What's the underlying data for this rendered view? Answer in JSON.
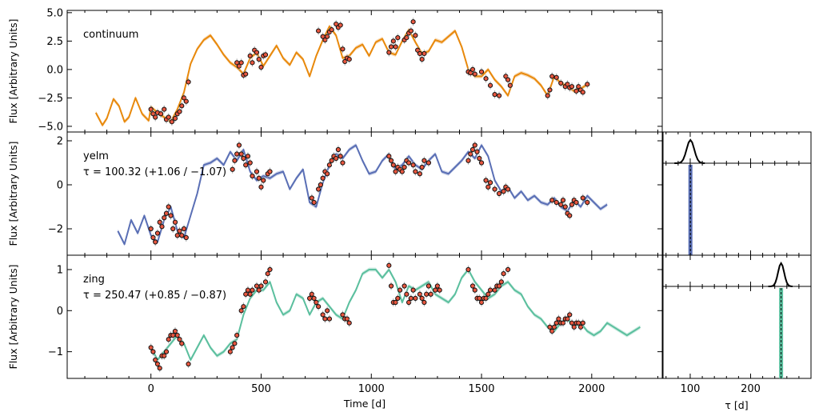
{
  "chart_data": {
    "type": "line",
    "xlabel": "Time [d]",
    "xlim": [
      -380,
      2320
    ],
    "xticks": [
      0,
      500,
      1000,
      1500,
      2000
    ],
    "tau_xlabel": "τ [d]",
    "tau_xlim": [
      55,
      300
    ],
    "tau_xticks": [
      100,
      200
    ],
    "panels": [
      {
        "name": "continuum",
        "lag_label": "",
        "color": "#e8890c",
        "ylabel": "Flux [Arbitrary Units]",
        "ylim": [
          -5.5,
          5.2
        ],
        "yticks": [
          -5.0,
          -2.5,
          0.0,
          2.5,
          5.0
        ],
        "ytick_labels": [
          "−5.0",
          "−2.5",
          "0.0",
          "2.5",
          "5.0"
        ],
        "model_x": [
          -250,
          -220,
          -200,
          -170,
          -145,
          -120,
          -100,
          -70,
          -40,
          -10,
          0,
          30,
          60,
          90,
          120,
          150,
          180,
          210,
          240,
          270,
          300,
          330,
          360,
          390,
          420,
          450,
          480,
          510,
          540,
          570,
          600,
          630,
          660,
          690,
          720,
          750,
          780,
          810,
          840,
          870,
          900,
          930,
          960,
          990,
          1020,
          1050,
          1080,
          1110,
          1140,
          1170,
          1200,
          1230,
          1260,
          1290,
          1320,
          1350,
          1380,
          1410,
          1440,
          1470,
          1500,
          1530,
          1560,
          1590,
          1620,
          1650,
          1680,
          1710,
          1740,
          1770,
          1800,
          1830,
          1860,
          1890,
          1920,
          1950,
          1980
        ],
        "model_y": [
          -3.8,
          -4.9,
          -4.3,
          -2.6,
          -3.2,
          -4.6,
          -4.2,
          -2.5,
          -3.9,
          -4.5,
          -3.3,
          -3.8,
          -4.2,
          -4.6,
          -3.5,
          -2.0,
          0.5,
          1.8,
          2.6,
          3.0,
          2.2,
          1.3,
          0.6,
          0.2,
          -0.4,
          1.0,
          1.5,
          0.3,
          1.2,
          2.1,
          1.0,
          0.4,
          1.5,
          0.9,
          -0.6,
          1.2,
          2.6,
          3.8,
          3.0,
          1.0,
          1.2,
          1.9,
          2.2,
          1.2,
          2.4,
          2.7,
          1.5,
          1.3,
          2.5,
          3.5,
          2.4,
          1.4,
          1.6,
          2.6,
          2.4,
          2.9,
          3.4,
          2.0,
          0.0,
          -0.6,
          -0.6,
          0.0,
          -0.9,
          -1.5,
          -2.3,
          -0.6,
          -0.3,
          -0.5,
          -0.8,
          -1.4,
          -2.3,
          -0.6,
          -1.2,
          -1.5,
          -1.9,
          -1.7,
          -1.3
        ],
        "obs_x": [
          0,
          10,
          20,
          30,
          45,
          60,
          70,
          80,
          95,
          110,
          120,
          130,
          140,
          150,
          160,
          170,
          390,
          400,
          410,
          420,
          430,
          450,
          460,
          470,
          480,
          490,
          500,
          510,
          520,
          760,
          780,
          790,
          800,
          810,
          820,
          840,
          850,
          860,
          870,
          880,
          890,
          900,
          1080,
          1090,
          1100,
          1110,
          1120,
          1150,
          1160,
          1170,
          1180,
          1190,
          1200,
          1210,
          1220,
          1230,
          1240,
          1440,
          1450,
          1460,
          1470,
          1500,
          1520,
          1540,
          1560,
          1580,
          1610,
          1620,
          1630,
          1800,
          1810,
          1820,
          1840,
          1860,
          1880,
          1890,
          1900,
          1910,
          1930,
          1940,
          1950,
          1960,
          1980
        ],
        "obs_y": [
          -3.5,
          -3.9,
          -4.2,
          -3.8,
          -3.9,
          -3.5,
          -4.4,
          -4.2,
          -4.6,
          -4.3,
          -3.9,
          -3.7,
          -3.2,
          -2.5,
          -2.8,
          -1.1,
          0.6,
          0.3,
          0.6,
          -0.5,
          -0.4,
          1.2,
          0.6,
          1.7,
          1.5,
          0.9,
          0.2,
          1.2,
          1.3,
          3.4,
          2.9,
          2.6,
          2.9,
          3.3,
          3.5,
          4.0,
          3.7,
          3.9,
          1.8,
          0.7,
          1.0,
          0.9,
          1.5,
          2.0,
          2.5,
          2.0,
          2.8,
          2.6,
          2.8,
          3.2,
          3.4,
          4.2,
          3.0,
          1.7,
          1.4,
          0.9,
          1.4,
          -0.2,
          -0.3,
          0.0,
          -0.4,
          -0.2,
          -0.8,
          -1.4,
          -2.2,
          -2.3,
          -0.6,
          -0.9,
          -1.4,
          -2.3,
          -1.8,
          -0.6,
          -0.7,
          -1.2,
          -1.5,
          -1.3,
          -1.6,
          -1.5,
          -1.9,
          -1.5,
          -1.8,
          -2.0,
          -1.3
        ]
      },
      {
        "name": "yelm",
        "lag_label": "τ = 100.32 (+1.06 / −1.07)",
        "color": "#5a6fb5",
        "ylabel": "Flux [Arbitrary Units]",
        "ylim": [
          -3.2,
          2.4
        ],
        "yticks": [
          -2,
          0,
          2
        ],
        "ytick_labels": [
          "−2",
          "0",
          "2"
        ],
        "model_x": [
          -150,
          -120,
          -90,
          -60,
          -30,
          0,
          30,
          60,
          90,
          120,
          150,
          180,
          210,
          240,
          270,
          300,
          330,
          360,
          390,
          420,
          450,
          480,
          510,
          540,
          570,
          600,
          630,
          660,
          690,
          720,
          750,
          780,
          810,
          840,
          870,
          900,
          930,
          960,
          990,
          1020,
          1050,
          1080,
          1110,
          1140,
          1170,
          1200,
          1230,
          1260,
          1290,
          1320,
          1350,
          1380,
          1410,
          1440,
          1470,
          1500,
          1530,
          1560,
          1590,
          1620,
          1650,
          1680,
          1710,
          1740,
          1770,
          1800,
          1830,
          1860,
          1890,
          1920,
          1950,
          1980,
          2010,
          2040,
          2070
        ],
        "model_y": [
          -2.1,
          -2.7,
          -1.6,
          -2.2,
          -1.4,
          -2.3,
          -2.6,
          -1.6,
          -1.0,
          -2.1,
          -2.4,
          -1.4,
          -0.4,
          0.9,
          1.0,
          1.2,
          0.9,
          1.5,
          1.1,
          1.6,
          0.6,
          0.2,
          0.4,
          0.3,
          0.5,
          0.6,
          -0.2,
          0.3,
          0.7,
          -0.8,
          -1.0,
          0.1,
          0.9,
          1.4,
          1.2,
          1.6,
          1.8,
          1.1,
          0.5,
          0.6,
          1.1,
          1.4,
          0.7,
          0.9,
          1.3,
          0.9,
          0.7,
          1.1,
          1.4,
          0.6,
          0.5,
          0.8,
          1.1,
          1.5,
          1.2,
          1.8,
          1.3,
          0.2,
          -0.3,
          -0.1,
          -0.6,
          -0.3,
          -0.7,
          -0.5,
          -0.8,
          -0.9,
          -0.6,
          -1.0,
          -1.2,
          -0.7,
          -1.0,
          -0.5,
          -0.8,
          -1.1,
          -0.9
        ],
        "obs_x": [
          0,
          10,
          20,
          30,
          40,
          50,
          60,
          70,
          80,
          90,
          100,
          110,
          120,
          130,
          140,
          150,
          160,
          370,
          380,
          390,
          400,
          410,
          420,
          430,
          440,
          450,
          460,
          480,
          490,
          500,
          510,
          530,
          540,
          730,
          740,
          760,
          770,
          780,
          790,
          800,
          810,
          820,
          830,
          840,
          850,
          860,
          870,
          1080,
          1090,
          1100,
          1110,
          1120,
          1130,
          1140,
          1150,
          1160,
          1170,
          1190,
          1200,
          1220,
          1230,
          1240,
          1260,
          1440,
          1450,
          1460,
          1470,
          1480,
          1490,
          1500,
          1520,
          1530,
          1540,
          1560,
          1580,
          1600,
          1610,
          1620,
          1820,
          1840,
          1860,
          1870,
          1880,
          1890,
          1900,
          1910,
          1920,
          1930,
          1960,
          1980
        ],
        "obs_y": [
          -2.0,
          -2.4,
          -2.6,
          -2.2,
          -1.7,
          -1.9,
          -1.5,
          -1.3,
          -1.0,
          -1.4,
          -2.0,
          -1.7,
          -2.3,
          -2.1,
          -2.3,
          -2.0,
          -2.4,
          0.7,
          1.1,
          1.4,
          1.8,
          1.4,
          1.2,
          0.9,
          1.3,
          1.0,
          0.4,
          0.6,
          0.3,
          -0.1,
          0.2,
          0.5,
          0.6,
          -0.6,
          -0.8,
          -0.2,
          0.0,
          0.3,
          0.6,
          0.5,
          0.9,
          1.1,
          1.3,
          1.2,
          1.6,
          1.3,
          1.0,
          1.3,
          1.1,
          0.9,
          0.6,
          0.8,
          0.7,
          0.6,
          0.8,
          1.1,
          1.0,
          0.9,
          0.6,
          0.5,
          0.8,
          1.1,
          1.0,
          1.1,
          1.4,
          1.6,
          1.8,
          1.5,
          1.2,
          1.0,
          0.2,
          -0.1,
          0.1,
          -0.2,
          -0.4,
          -0.3,
          -0.1,
          -0.2,
          -0.7,
          -0.8,
          -0.9,
          -0.7,
          -1.0,
          -1.3,
          -1.4,
          -0.9,
          -0.7,
          -0.8,
          -0.6,
          -0.8
        ]
      },
      {
        "name": "zing",
        "lag_label": "τ = 250.47 (+0.85 / −0.87)",
        "color": "#5bbf9e",
        "ylabel": "Flux [Arbitrary Units]",
        "ylim": [
          -1.65,
          1.35
        ],
        "yticks": [
          -1,
          0,
          1
        ],
        "ytick_labels": [
          "−1",
          "0",
          "1"
        ],
        "model_x": [
          0,
          30,
          60,
          90,
          120,
          150,
          180,
          210,
          240,
          270,
          300,
          330,
          360,
          390,
          420,
          450,
          480,
          510,
          540,
          570,
          600,
          630,
          660,
          690,
          720,
          750,
          780,
          810,
          840,
          870,
          900,
          930,
          960,
          990,
          1020,
          1050,
          1080,
          1110,
          1140,
          1170,
          1200,
          1230,
          1260,
          1290,
          1320,
          1350,
          1380,
          1410,
          1440,
          1470,
          1500,
          1530,
          1560,
          1590,
          1620,
          1650,
          1680,
          1710,
          1740,
          1770,
          1800,
          1830,
          1860,
          1890,
          1920,
          1950,
          1980,
          2010,
          2040,
          2070,
          2100,
          2130,
          2160,
          2190,
          2220
        ],
        "model_y": [
          -0.9,
          -1.2,
          -1.0,
          -0.8,
          -0.6,
          -0.8,
          -1.2,
          -0.9,
          -0.6,
          -0.9,
          -1.1,
          -1.0,
          -0.8,
          -0.7,
          -0.1,
          0.3,
          0.5,
          0.5,
          0.7,
          0.2,
          -0.1,
          0.0,
          0.4,
          0.3,
          -0.1,
          0.2,
          0.3,
          0.1,
          -0.1,
          -0.2,
          0.2,
          0.5,
          0.9,
          1.0,
          1.0,
          0.8,
          1.0,
          0.7,
          0.2,
          0.6,
          0.5,
          0.6,
          0.7,
          0.4,
          0.3,
          0.2,
          0.4,
          0.8,
          1.0,
          0.7,
          0.5,
          0.3,
          0.4,
          0.6,
          0.7,
          0.5,
          0.4,
          0.1,
          -0.1,
          -0.2,
          -0.4,
          -0.5,
          -0.3,
          -0.2,
          -0.4,
          -0.3,
          -0.5,
          -0.6,
          -0.5,
          -0.3,
          -0.4,
          -0.5,
          -0.6,
          -0.5,
          -0.4
        ],
        "obs_x": [
          0,
          10,
          20,
          30,
          40,
          50,
          60,
          70,
          80,
          90,
          100,
          110,
          120,
          130,
          140,
          170,
          360,
          370,
          380,
          390,
          410,
          420,
          430,
          440,
          450,
          460,
          480,
          490,
          500,
          520,
          530,
          540,
          720,
          730,
          740,
          750,
          760,
          780,
          790,
          800,
          810,
          870,
          880,
          890,
          900,
          1080,
          1090,
          1100,
          1110,
          1120,
          1130,
          1150,
          1160,
          1170,
          1180,
          1190,
          1200,
          1220,
          1230,
          1240,
          1250,
          1260,
          1270,
          1290,
          1300,
          1310,
          1440,
          1460,
          1470,
          1480,
          1490,
          1500,
          1510,
          1520,
          1530,
          1540,
          1560,
          1570,
          1580,
          1590,
          1600,
          1620,
          1810,
          1820,
          1830,
          1840,
          1850,
          1860,
          1870,
          1880,
          1890,
          1900,
          1910,
          1920,
          1930,
          1940,
          1950,
          1960
        ],
        "obs_y": [
          -0.9,
          -1.0,
          -1.2,
          -1.3,
          -1.4,
          -1.1,
          -1.1,
          -1.0,
          -0.7,
          -0.6,
          -0.6,
          -0.5,
          -0.6,
          -0.7,
          -0.8,
          -1.3,
          -1.0,
          -0.9,
          -0.8,
          -0.6,
          0.0,
          0.1,
          0.4,
          0.5,
          0.4,
          0.5,
          0.6,
          0.5,
          0.6,
          0.7,
          0.9,
          1.0,
          0.3,
          0.4,
          0.3,
          0.2,
          0.1,
          -0.1,
          -0.2,
          0.0,
          -0.2,
          -0.1,
          -0.2,
          -0.2,
          -0.3,
          1.1,
          0.6,
          0.2,
          0.2,
          0.3,
          0.5,
          0.6,
          0.4,
          0.2,
          0.3,
          0.5,
          0.3,
          0.4,
          0.3,
          0.2,
          0.4,
          0.6,
          0.4,
          0.5,
          0.6,
          0.5,
          1.0,
          0.6,
          0.5,
          0.3,
          0.3,
          0.2,
          0.3,
          0.3,
          0.4,
          0.5,
          0.5,
          0.6,
          0.6,
          0.7,
          0.9,
          1.0,
          -0.4,
          -0.5,
          -0.4,
          -0.3,
          -0.2,
          -0.3,
          -0.3,
          -0.2,
          -0.2,
          -0.1,
          -0.3,
          -0.4,
          -0.3,
          -0.3,
          -0.4,
          -0.3
        ],
        "tau_posterior_peak": 250.47
      }
    ],
    "tau_posteriors": [
      {
        "name": "yelm",
        "peak": 100.32,
        "width": 5
      },
      {
        "name": "zing",
        "peak": 250.47,
        "width": 4
      }
    ]
  }
}
